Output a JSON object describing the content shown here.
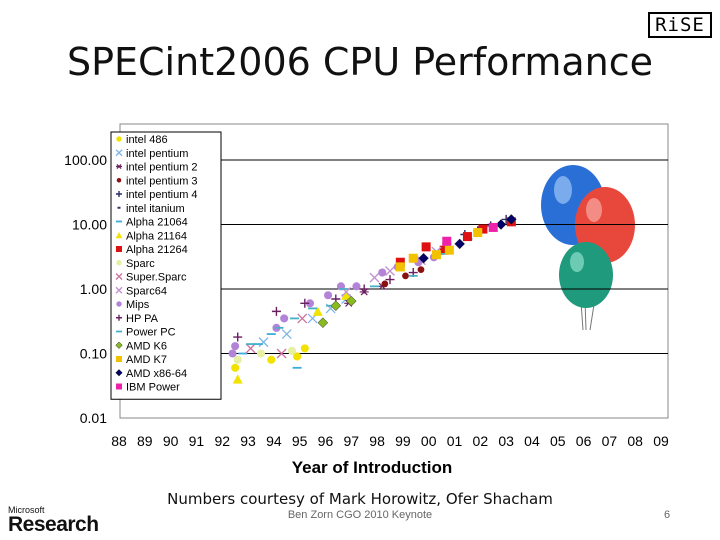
{
  "slide": {
    "title": "SPECint2006 CPU Performance",
    "logo_text": "RiSE",
    "ms_small": "Microsoft",
    "ms_big": "Research",
    "credit": "Numbers courtesy of Mark Horowitz, Ofer Shacham",
    "footer": "Ben Zorn CGO 2010 Keynote",
    "page_number": "6"
  },
  "chart_data": {
    "type": "scatter",
    "title": "SPECint2006 CPU Performance",
    "xlabel": "Year of Introduction",
    "ylabel": "",
    "yscale": "log",
    "xlim": [
      1988,
      2009
    ],
    "ylim": [
      0.01,
      100
    ],
    "x_tick_labels": [
      "88",
      "89",
      "90",
      "91",
      "92",
      "93",
      "94",
      "95",
      "96",
      "97",
      "98",
      "99",
      "00",
      "01",
      "02",
      "03",
      "04",
      "05",
      "06",
      "07",
      "08",
      "09"
    ],
    "y_tick_labels": [
      "100.00",
      "10.00",
      "1.00",
      "0.10",
      "0.01"
    ],
    "y_tick_values": [
      100,
      10,
      1,
      0.1,
      0.01
    ],
    "legend_position": "upper-left",
    "series": [
      {
        "name": "intel 486",
        "marker": "circle",
        "color": "#f2e200",
        "points": [
          [
            1992.5,
            0.06
          ],
          [
            1993.9,
            0.08
          ],
          [
            1994.9,
            0.09
          ],
          [
            1995.2,
            0.12
          ]
        ]
      },
      {
        "name": "intel pentium",
        "marker": "x",
        "color": "#7fb6e6",
        "points": [
          [
            1993.6,
            0.15
          ],
          [
            1994.5,
            0.2
          ],
          [
            1995.5,
            0.35
          ],
          [
            1996.2,
            0.5
          ],
          [
            1996.8,
            0.7
          ]
        ]
      },
      {
        "name": "intel pentium 2",
        "marker": "star",
        "color": "#6a1f60",
        "points": [
          [
            1996.9,
            0.6
          ],
          [
            1997.5,
            0.9
          ],
          [
            1998.2,
            1.1
          ]
        ]
      },
      {
        "name": "intel pentium 3",
        "marker": "dot",
        "color": "#8b1010",
        "points": [
          [
            1998.3,
            1.2
          ],
          [
            1999.1,
            1.6
          ],
          [
            1999.7,
            2.0
          ]
        ]
      },
      {
        "name": "intel pentium 4",
        "marker": "plus",
        "color": "#2a2a6a",
        "points": [
          [
            2000.7,
            5
          ],
          [
            2001.4,
            7
          ],
          [
            2001.9,
            8
          ],
          [
            2002.4,
            9.5
          ],
          [
            2003.0,
            12
          ]
        ]
      },
      {
        "name": "intel itanium",
        "marker": "tick",
        "color": "#333366",
        "points": [
          [
            2001.6,
            6
          ],
          [
            2002.8,
            10
          ]
        ]
      },
      {
        "name": "Alpha 21064",
        "marker": "dash",
        "color": "#3aaed8",
        "points": [
          [
            1992.8,
            0.1
          ],
          [
            1993.4,
            0.14
          ],
          [
            1993.9,
            0.2
          ],
          [
            1994.9,
            0.06
          ]
        ]
      },
      {
        "name": "Alpha 21164",
        "marker": "triangle",
        "color": "#f2e200",
        "points": [
          [
            1992.6,
            0.04
          ],
          [
            1995.7,
            0.45
          ],
          [
            1996.8,
            0.8
          ]
        ]
      },
      {
        "name": "Alpha 21264",
        "marker": "square",
        "color": "#dd1111",
        "points": [
          [
            1998.9,
            2.6
          ],
          [
            1999.9,
            4.5
          ],
          [
            2000.6,
            4.0
          ],
          [
            2001.5,
            6.5
          ],
          [
            2002.1,
            8.5
          ],
          [
            2003.2,
            11
          ]
        ]
      },
      {
        "name": "Sparc",
        "marker": "circle",
        "color": "#e6f0a0",
        "points": [
          [
            1992.6,
            0.08
          ],
          [
            1993.5,
            0.1
          ],
          [
            1994.7,
            0.11
          ]
        ]
      },
      {
        "name": "Super.Sparc",
        "marker": "x",
        "color": "#d070a0",
        "points": [
          [
            1993.1,
            0.12
          ],
          [
            1994.3,
            0.1
          ],
          [
            1995.1,
            0.35
          ]
        ]
      },
      {
        "name": "Sparc64",
        "marker": "x",
        "color": "#c090d0",
        "points": [
          [
            1996.8,
            0.9
          ],
          [
            1997.9,
            1.5
          ],
          [
            1998.5,
            1.9
          ],
          [
            1999.7,
            2.8
          ],
          [
            2000.3,
            3.8
          ]
        ]
      },
      {
        "name": "Mips",
        "marker": "circle",
        "color": "#b383d8",
        "points": [
          [
            1992.4,
            0.1
          ],
          [
            1992.5,
            0.13
          ],
          [
            1994.1,
            0.25
          ],
          [
            1994.4,
            0.35
          ],
          [
            1995.4,
            0.6
          ],
          [
            1996.1,
            0.8
          ],
          [
            1996.6,
            1.1
          ],
          [
            1997.2,
            1.1
          ],
          [
            1998.2,
            1.8
          ],
          [
            1998.8,
            2.2
          ],
          [
            1999.6,
            2.6
          ],
          [
            2000.2,
            3.1
          ]
        ]
      },
      {
        "name": "HP PA",
        "marker": "plus",
        "color": "#6a1f60",
        "points": [
          [
            1992.6,
            0.18
          ],
          [
            1994.1,
            0.45
          ],
          [
            1995.2,
            0.6
          ],
          [
            1996.4,
            0.7
          ],
          [
            1997.5,
            1.0
          ],
          [
            1998.5,
            1.4
          ],
          [
            1999.4,
            1.8
          ]
        ]
      },
      {
        "name": "Power PC",
        "marker": "dash",
        "color": "#47b0c8",
        "points": [
          [
            1993.1,
            0.14
          ],
          [
            1994.2,
            0.25
          ],
          [
            1994.8,
            0.35
          ],
          [
            1995.5,
            0.5
          ],
          [
            1996.2,
            0.55
          ],
          [
            1996.7,
            1.0
          ],
          [
            1997.9,
            1.1
          ],
          [
            1999.4,
            1.6
          ],
          [
            2000.5,
            3.5
          ]
        ]
      },
      {
        "name": "AMD K6",
        "marker": "diamond",
        "color": "#88bb22",
        "points": [
          [
            1995.9,
            0.3
          ],
          [
            1996.4,
            0.55
          ],
          [
            1997.0,
            0.65
          ]
        ]
      },
      {
        "name": "AMD K7",
        "marker": "square",
        "color": "#f2c200",
        "points": [
          [
            1998.9,
            2.2
          ],
          [
            1999.4,
            3.0
          ],
          [
            2000.3,
            3.4
          ],
          [
            2000.8,
            4.0
          ],
          [
            2001.9,
            7.5
          ]
        ]
      },
      {
        "name": "AMD x86-64",
        "marker": "diamond",
        "color": "#000066",
        "points": [
          [
            1999.8,
            3.0
          ],
          [
            2001.2,
            5.0
          ],
          [
            2002.8,
            10
          ],
          [
            2003.2,
            12
          ]
        ]
      },
      {
        "name": "IBM Power",
        "marker": "square",
        "color": "#ee22aa",
        "points": [
          [
            2000.7,
            5.5
          ],
          [
            2002.5,
            9.0
          ]
        ]
      }
    ]
  }
}
